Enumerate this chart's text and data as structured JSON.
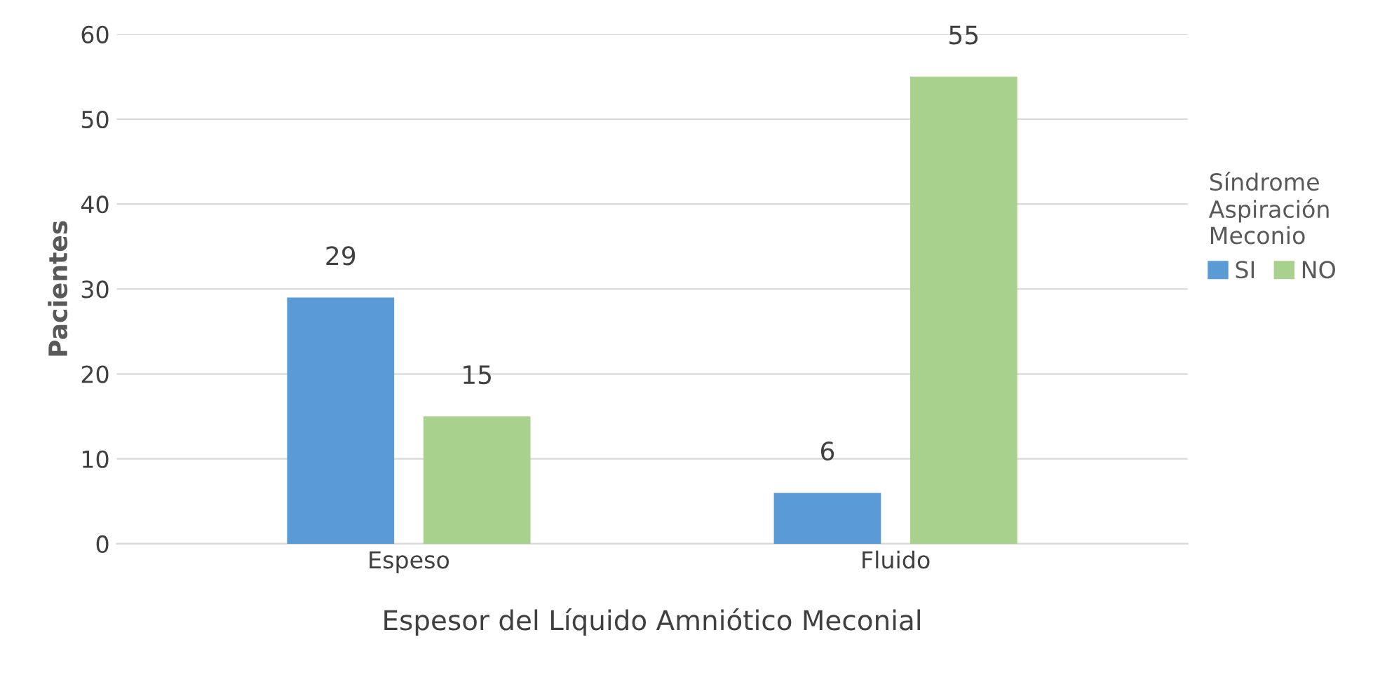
{
  "chart_data": {
    "type": "bar",
    "xlabel": "Espesor del Líquido Amniótico Meconial",
    "ylabel": "Pacientes",
    "legend_title": "Síndrome\nAspiración\nMeconio",
    "categories": [
      "Espeso",
      "Fluido"
    ],
    "series": [
      {
        "name": "SI",
        "color": "#5b9bd5",
        "values": [
          29,
          6
        ]
      },
      {
        "name": "NO",
        "color": "#a9d18e",
        "values": [
          15,
          55
        ]
      }
    ],
    "ylim": [
      0,
      60
    ],
    "yticks": [
      0,
      10,
      20,
      30,
      40,
      50,
      60
    ],
    "grid": "y",
    "legend": "right",
    "data_labels": true
  }
}
